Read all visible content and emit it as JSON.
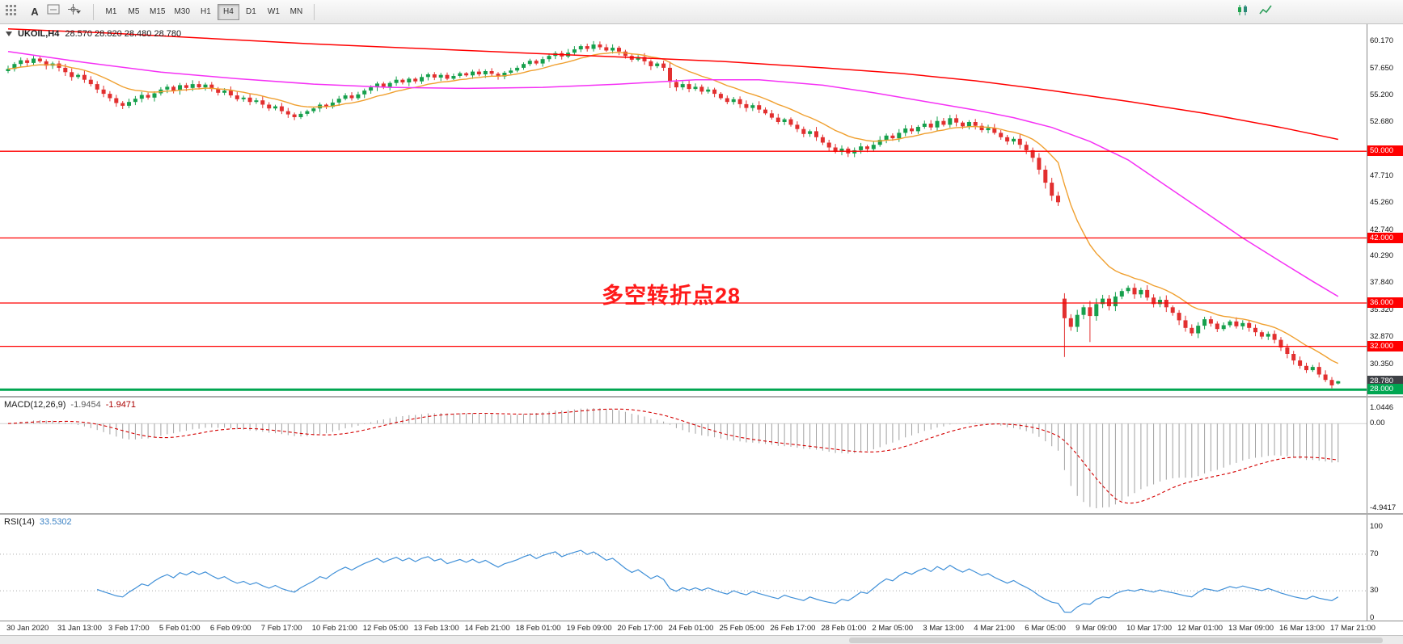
{
  "toolbar": {
    "left_tools": {
      "text_tool": "A"
    },
    "timeframes": [
      "M1",
      "M5",
      "M15",
      "M30",
      "H1",
      "H4",
      "D1",
      "W1",
      "MN"
    ],
    "active_timeframe": "H4"
  },
  "chart": {
    "symbol_title": "UKOIL,H4",
    "ohlc_text": "28.570 28.820 28.480 28.780",
    "annotation": "多空转折点28",
    "current_price": 28.78,
    "levels": [
      {
        "price": 50.0,
        "color": "#ff0000",
        "width": 1.3
      },
      {
        "price": 42.0,
        "color": "#ff0000",
        "width": 1.3
      },
      {
        "price": 36.0,
        "color": "#ff0000",
        "width": 1.3
      },
      {
        "price": 32.0,
        "color": "#ff0000",
        "width": 1.3
      },
      {
        "price": 28.0,
        "color": "#00a651",
        "width": 3
      }
    ],
    "axis_ticks": [
      60.17,
      57.65,
      55.2,
      52.68,
      47.71,
      45.26,
      42.74,
      40.29,
      37.84,
      35.32,
      32.87,
      30.35
    ]
  },
  "macd": {
    "name": "MACD(12,26,9)",
    "value_main": "-1.9454",
    "value_signal": "-1.9471",
    "axis_labels": [
      "1.0446",
      "0.00",
      "-4.9417"
    ],
    "fast": 12,
    "slow": 26,
    "signal": 9
  },
  "rsi": {
    "name": "RSI(14)",
    "value": "33.5302",
    "period": 14,
    "axis_labels": [
      "100",
      "70",
      "30",
      "0"
    ],
    "levels": [
      70,
      30
    ]
  },
  "colors": {
    "bull": "#16a04c",
    "bear": "#e22f2f",
    "ma_fast": "#f0a030",
    "ma_mid": "#f531f5",
    "ma_slow": "#ff0000",
    "macd_hist": "#a0a0a0",
    "macd_signal": "#d40000",
    "rsi_line": "#4090d8",
    "annotation": "#ff1a1a",
    "badge_dark": "#3f4247"
  },
  "chart_data": {
    "type": "candlestick",
    "symbol": "UKOIL",
    "timeframe": "H4",
    "last_candle": {
      "open": 28.57,
      "high": 28.82,
      "low": 28.48,
      "close": 28.78
    },
    "first_open": 57.4,
    "ma_fast_period": 13,
    "closes": [
      57.6,
      58.05,
      58.4,
      58.15,
      58.55,
      58.3,
      57.9,
      58.1,
      57.7,
      57.3,
      56.85,
      57.05,
      56.6,
      56.2,
      55.7,
      55.3,
      54.9,
      54.45,
      54.2,
      54.55,
      54.85,
      55.2,
      54.95,
      55.35,
      55.7,
      55.95,
      55.6,
      56.1,
      55.85,
      56.2,
      55.9,
      56.15,
      55.75,
      55.4,
      55.6,
      55.15,
      54.8,
      54.95,
      54.55,
      54.7,
      54.3,
      53.95,
      54.15,
      53.7,
      53.4,
      53.15,
      53.45,
      53.7,
      53.95,
      54.3,
      54.1,
      54.5,
      54.85,
      55.15,
      54.9,
      55.25,
      55.6,
      55.9,
      56.25,
      55.95,
      56.3,
      56.6,
      56.35,
      56.7,
      56.45,
      56.85,
      57.1,
      56.8,
      57.05,
      56.7,
      56.95,
      57.2,
      57.0,
      57.35,
      57.1,
      57.4,
      57.15,
      56.9,
      57.25,
      57.45,
      57.7,
      58.05,
      58.35,
      58.1,
      58.5,
      58.8,
      59.05,
      58.75,
      59.1,
      59.4,
      59.7,
      59.45,
      59.85,
      59.6,
      59.3,
      59.55,
      59.2,
      58.8,
      58.45,
      58.7,
      58.3,
      57.85,
      58.1,
      57.7,
      56.4,
      55.9,
      56.2,
      55.75,
      55.95,
      55.5,
      55.7,
      55.3,
      54.9,
      54.55,
      54.8,
      54.35,
      54.0,
      54.25,
      53.85,
      53.5,
      53.1,
      52.7,
      52.95,
      52.45,
      52.05,
      51.6,
      51.85,
      51.3,
      50.8,
      50.35,
      49.95,
      50.25,
      49.8,
      50.1,
      50.45,
      50.2,
      50.6,
      51.05,
      51.45,
      51.2,
      51.7,
      52.1,
      51.85,
      52.25,
      52.55,
      52.2,
      52.8,
      52.45,
      53.05,
      52.65,
      52.3,
      52.7,
      52.35,
      51.95,
      52.15,
      51.7,
      51.3,
      50.9,
      51.15,
      50.6,
      50.1,
      49.4,
      48.3,
      47.1,
      45.9,
      45.3,
      34.6,
      33.8,
      34.9,
      35.6,
      34.8,
      35.9,
      36.4,
      35.7,
      36.6,
      37.1,
      37.4,
      36.8,
      37.2,
      36.5,
      35.9,
      36.3,
      35.6,
      35.1,
      34.4,
      33.7,
      33.2,
      33.9,
      34.5,
      34.1,
      33.6,
      33.95,
      34.3,
      33.85,
      34.15,
      33.7,
      33.3,
      32.9,
      33.15,
      32.6,
      31.9,
      31.3,
      30.7,
      30.2,
      29.8,
      30.1,
      29.4,
      28.9,
      28.4,
      28.78
    ],
    "overrides": {
      "166": [
        36.4,
        36.9,
        31.02,
        34.6
      ],
      "170": [
        35.6,
        36.2,
        32.4,
        34.8
      ],
      "209": [
        28.57,
        28.82,
        28.48,
        28.78
      ]
    },
    "ma_mid_anchors": [
      [
        0,
        59.2
      ],
      [
        12,
        58.2
      ],
      [
        24,
        57.3
      ],
      [
        36,
        56.7
      ],
      [
        48,
        56.2
      ],
      [
        60,
        55.9
      ],
      [
        72,
        55.8
      ],
      [
        84,
        55.9
      ],
      [
        96,
        56.2
      ],
      [
        108,
        56.6
      ],
      [
        118,
        56.6
      ],
      [
        128,
        56.1
      ],
      [
        136,
        55.4
      ],
      [
        144,
        54.6
      ],
      [
        152,
        53.8
      ],
      [
        158,
        53.1
      ],
      [
        164,
        52.2
      ],
      [
        170,
        50.9
      ],
      [
        176,
        49.2
      ],
      [
        182,
        46.8
      ],
      [
        188,
        44.4
      ],
      [
        194,
        42.0
      ],
      [
        200,
        39.8
      ],
      [
        205,
        38.0
      ],
      [
        209,
        36.6
      ]
    ],
    "ma_slow_anchors": [
      [
        0,
        61.3
      ],
      [
        16,
        60.9
      ],
      [
        32,
        60.4
      ],
      [
        48,
        59.9
      ],
      [
        64,
        59.5
      ],
      [
        80,
        59.1
      ],
      [
        96,
        58.7
      ],
      [
        112,
        58.3
      ],
      [
        128,
        57.7
      ],
      [
        140,
        57.2
      ],
      [
        152,
        56.5
      ],
      [
        164,
        55.6
      ],
      [
        176,
        54.6
      ],
      [
        188,
        53.5
      ],
      [
        200,
        52.2
      ],
      [
        209,
        51.1
      ]
    ],
    "x_labels": [
      "30 Jan 2020",
      "31 Jan 13:00",
      "3 Feb 17:00",
      "5 Feb 01:00",
      "6 Feb 09:00",
      "7 Feb 17:00",
      "10 Feb 21:00",
      "12 Feb 05:00",
      "13 Feb 13:00",
      "14 Feb 21:00",
      "18 Feb 01:00",
      "19 Feb 09:00",
      "20 Feb 17:00",
      "24 Feb 01:00",
      "25 Feb 05:00",
      "26 Feb 17:00",
      "28 Feb 01:00",
      "2 Mar 05:00",
      "3 Mar 13:00",
      "4 Mar 21:00",
      "6 Mar 05:00",
      "9 Mar 09:00",
      "10 Mar 17:00",
      "12 Mar 01:00",
      "13 Mar 09:00",
      "16 Mar 13:00",
      "17 Mar 21:00"
    ]
  }
}
